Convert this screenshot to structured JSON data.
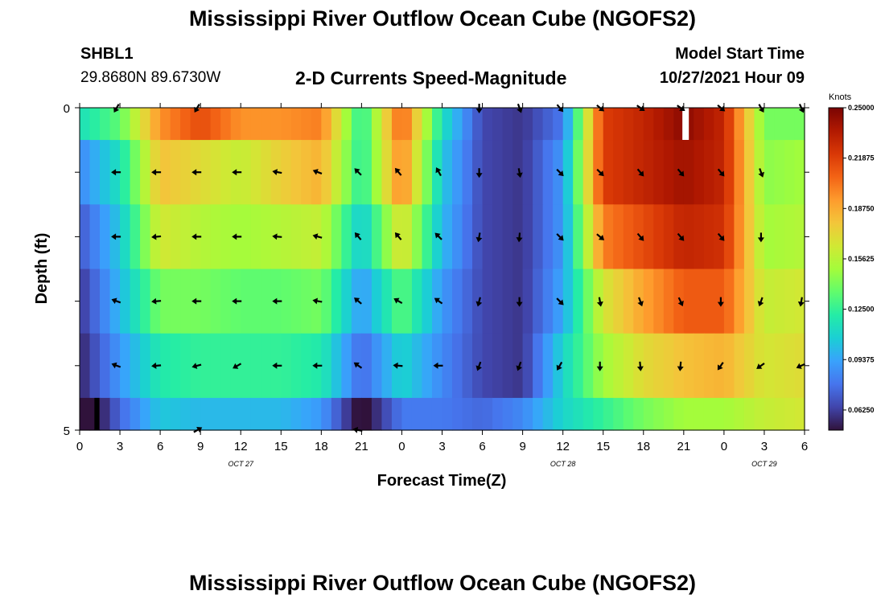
{
  "page": {
    "title": "Mississippi River Outflow Ocean Cube (NGOFS2)",
    "station_id": "SHBL1",
    "station_coords": "29.8680N  89.6730W",
    "subtitle": "2-D Currents Speed-Magnitude",
    "model_start_label": "Model Start Time",
    "model_start_value": "10/27/2021 Hour 09",
    "second_title": "Mississippi River Outflow Ocean Cube (NGOFS2)"
  },
  "colors": {
    "palette": [
      "#30123b",
      "#4145ab",
      "#4675ed",
      "#39a2fc",
      "#1bcfd4",
      "#24eca6",
      "#61fc6c",
      "#a4fc3b",
      "#d1e834",
      "#f3c63a",
      "#fe9b2d",
      "#f36315",
      "#d93806",
      "#b11901",
      "#7a0403"
    ]
  },
  "chart_data": {
    "type": "heatmap",
    "xlabel": "Forecast Time(Z)",
    "ylabel": "Depth (ft)",
    "x_tick_labels": [
      "0",
      "3",
      "6",
      "9",
      "12",
      "15",
      "18",
      "21",
      "0",
      "3",
      "6",
      "9",
      "12",
      "15",
      "18",
      "21",
      "0",
      "3",
      "6"
    ],
    "y_tick_labels": [
      "0",
      "5"
    ],
    "ylim": [
      0,
      5
    ],
    "date_labels": [
      {
        "label": "OCT 27",
        "hour": 12
      },
      {
        "label": "OCT 28",
        "hour": 36
      },
      {
        "label": "OCT 29",
        "hour": 51
      }
    ],
    "colorbar": {
      "title": "Knots",
      "range": [
        0.05,
        0.25
      ],
      "ticks": [
        "0.25000",
        "0.21875",
        "0.18750",
        "0.15625",
        "0.12500",
        "0.09375",
        "0.06250"
      ]
    },
    "x_hours": [
      0,
      3,
      6,
      9,
      12,
      15,
      18,
      21,
      24,
      27,
      30,
      33,
      36,
      39,
      42,
      45,
      48,
      51,
      54
    ],
    "rows": [
      {
        "depth_range": [
          0,
          0.5
        ],
        "values": [
          0.115,
          0.135,
          0.195,
          0.215,
          0.195,
          0.195,
          0.2,
          0.12,
          0.21,
          0.115,
          0.065,
          0.06,
          0.08,
          0.22,
          0.23,
          0.245,
          0.23,
          0.14,
          0.14
        ]
      },
      {
        "depth_range": [
          0.5,
          1.5
        ],
        "values": [
          0.085,
          0.115,
          0.18,
          0.17,
          0.16,
          0.175,
          0.185,
          0.12,
          0.2,
          0.105,
          0.065,
          0.06,
          0.09,
          0.22,
          0.23,
          0.24,
          0.23,
          0.145,
          0.15
        ]
      },
      {
        "depth_range": [
          1.5,
          2.5
        ],
        "values": [
          0.07,
          0.105,
          0.165,
          0.155,
          0.15,
          0.155,
          0.16,
          0.105,
          0.17,
          0.1,
          0.065,
          0.06,
          0.09,
          0.2,
          0.215,
          0.23,
          0.225,
          0.15,
          0.155
        ]
      },
      {
        "depth_range": [
          2.5,
          3.5
        ],
        "values": [
          0.06,
          0.1,
          0.14,
          0.14,
          0.135,
          0.135,
          0.14,
          0.09,
          0.135,
          0.09,
          0.065,
          0.06,
          0.095,
          0.165,
          0.19,
          0.21,
          0.21,
          0.16,
          0.165
        ]
      },
      {
        "depth_range": [
          3.5,
          4.5
        ],
        "values": [
          0.055,
          0.09,
          0.12,
          0.125,
          0.125,
          0.125,
          0.12,
          0.075,
          0.11,
          0.085,
          0.065,
          0.06,
          0.11,
          0.15,
          0.17,
          0.18,
          0.185,
          0.165,
          0.17
        ]
      },
      {
        "depth_range": [
          4.5,
          5.0
        ],
        "values": [
          0.03,
          0.075,
          0.105,
          0.1,
          0.1,
          0.1,
          0.09,
          0.045,
          0.08,
          0.08,
          0.075,
          0.085,
          0.11,
          0.125,
          0.14,
          0.15,
          0.15,
          0.16,
          0.165
        ]
      }
    ],
    "vector_arrows": [
      {
        "depth": 0,
        "dir_deg": [
          0,
          210,
          0,
          210,
          0,
          0,
          0,
          0,
          0,
          0,
          180,
          160,
          140,
          130,
          125,
          125,
          130,
          150,
          155
        ]
      },
      {
        "depth": 1,
        "dir_deg": [
          0,
          270,
          270,
          270,
          270,
          280,
          290,
          315,
          320,
          330,
          180,
          170,
          135,
          135,
          140,
          140,
          140,
          160,
          0
        ]
      },
      {
        "depth": 2,
        "dir_deg": [
          0,
          270,
          265,
          270,
          270,
          275,
          285,
          320,
          320,
          315,
          190,
          185,
          135,
          130,
          140,
          140,
          140,
          180,
          0
        ]
      },
      {
        "depth": 3,
        "dir_deg": [
          0,
          290,
          265,
          270,
          270,
          270,
          280,
          310,
          300,
          305,
          195,
          180,
          135,
          170,
          160,
          155,
          180,
          200,
          190
        ]
      },
      {
        "depth": 4,
        "dir_deg": [
          0,
          290,
          265,
          255,
          240,
          270,
          270,
          305,
          275,
          270,
          200,
          200,
          210,
          180,
          175,
          185,
          215,
          235,
          245
        ]
      },
      {
        "depth": 5,
        "dir_deg": [
          0,
          0,
          0,
          60,
          0,
          0,
          0,
          280,
          0,
          0,
          0,
          0,
          0,
          0,
          0,
          0,
          0,
          0,
          0
        ]
      }
    ]
  }
}
